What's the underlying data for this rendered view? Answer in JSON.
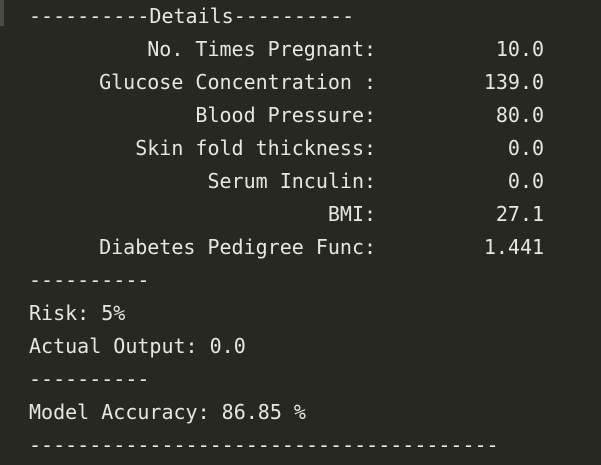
{
  "header": {
    "text": "----------Details----------"
  },
  "details": [
    {
      "label": "No. Times Pregnant",
      "sep": ":",
      "value": "10.0"
    },
    {
      "label": "Glucose Concentration ",
      "sep": ":",
      "value": "139.0"
    },
    {
      "label": "Blood Pressure",
      "sep": ":",
      "value": "80.0"
    },
    {
      "label": "Skin fold thickness",
      "sep": ":",
      "value": "0.0"
    },
    {
      "label": "Serum Inculin",
      "sep": ":",
      "value": "0.0"
    },
    {
      "label": "BMI",
      "sep": ":",
      "value": "27.1"
    },
    {
      "label": "Diabetes Pedigree Func",
      "sep": ":",
      "value": "1.441"
    }
  ],
  "separator_short": "----------",
  "risk": {
    "text": "Risk: 5%"
  },
  "actual": {
    "text": "Actual Output: 0.0"
  },
  "accuracy": {
    "text": "Model Accuracy: 86.85 %"
  },
  "footer": {
    "text": "---------------------------------------"
  }
}
